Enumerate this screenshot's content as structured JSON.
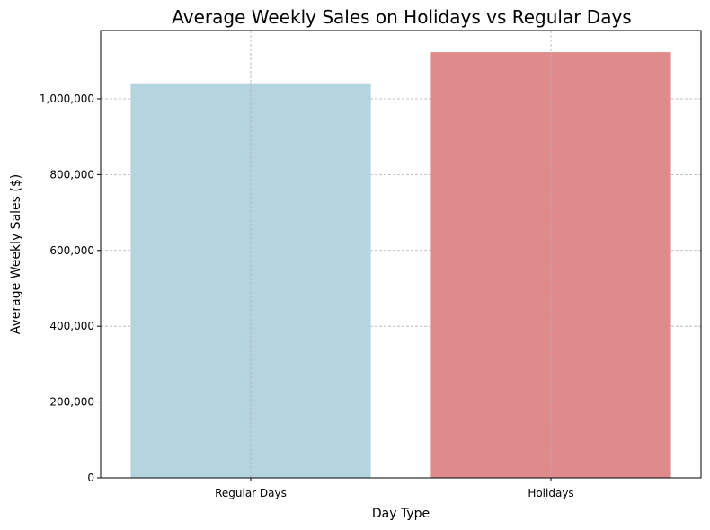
{
  "chart_data": {
    "type": "bar",
    "title": "Average Weekly Sales on Holidays vs Regular Days",
    "xlabel": "Day Type",
    "ylabel": "Average Weekly Sales ($)",
    "categories": [
      "Regular Days",
      "Holidays"
    ],
    "values": [
      1041000,
      1123000
    ],
    "colors": [
      "#b4d5df",
      "#e08b8b"
    ],
    "ylim": [
      0,
      1180000
    ],
    "yticks": [
      0,
      200000,
      400000,
      600000,
      800000,
      1000000
    ],
    "ytick_labels": [
      "0",
      "200,000",
      "400,000",
      "600,000",
      "800,000",
      "1,000,000"
    ],
    "grid": true
  }
}
